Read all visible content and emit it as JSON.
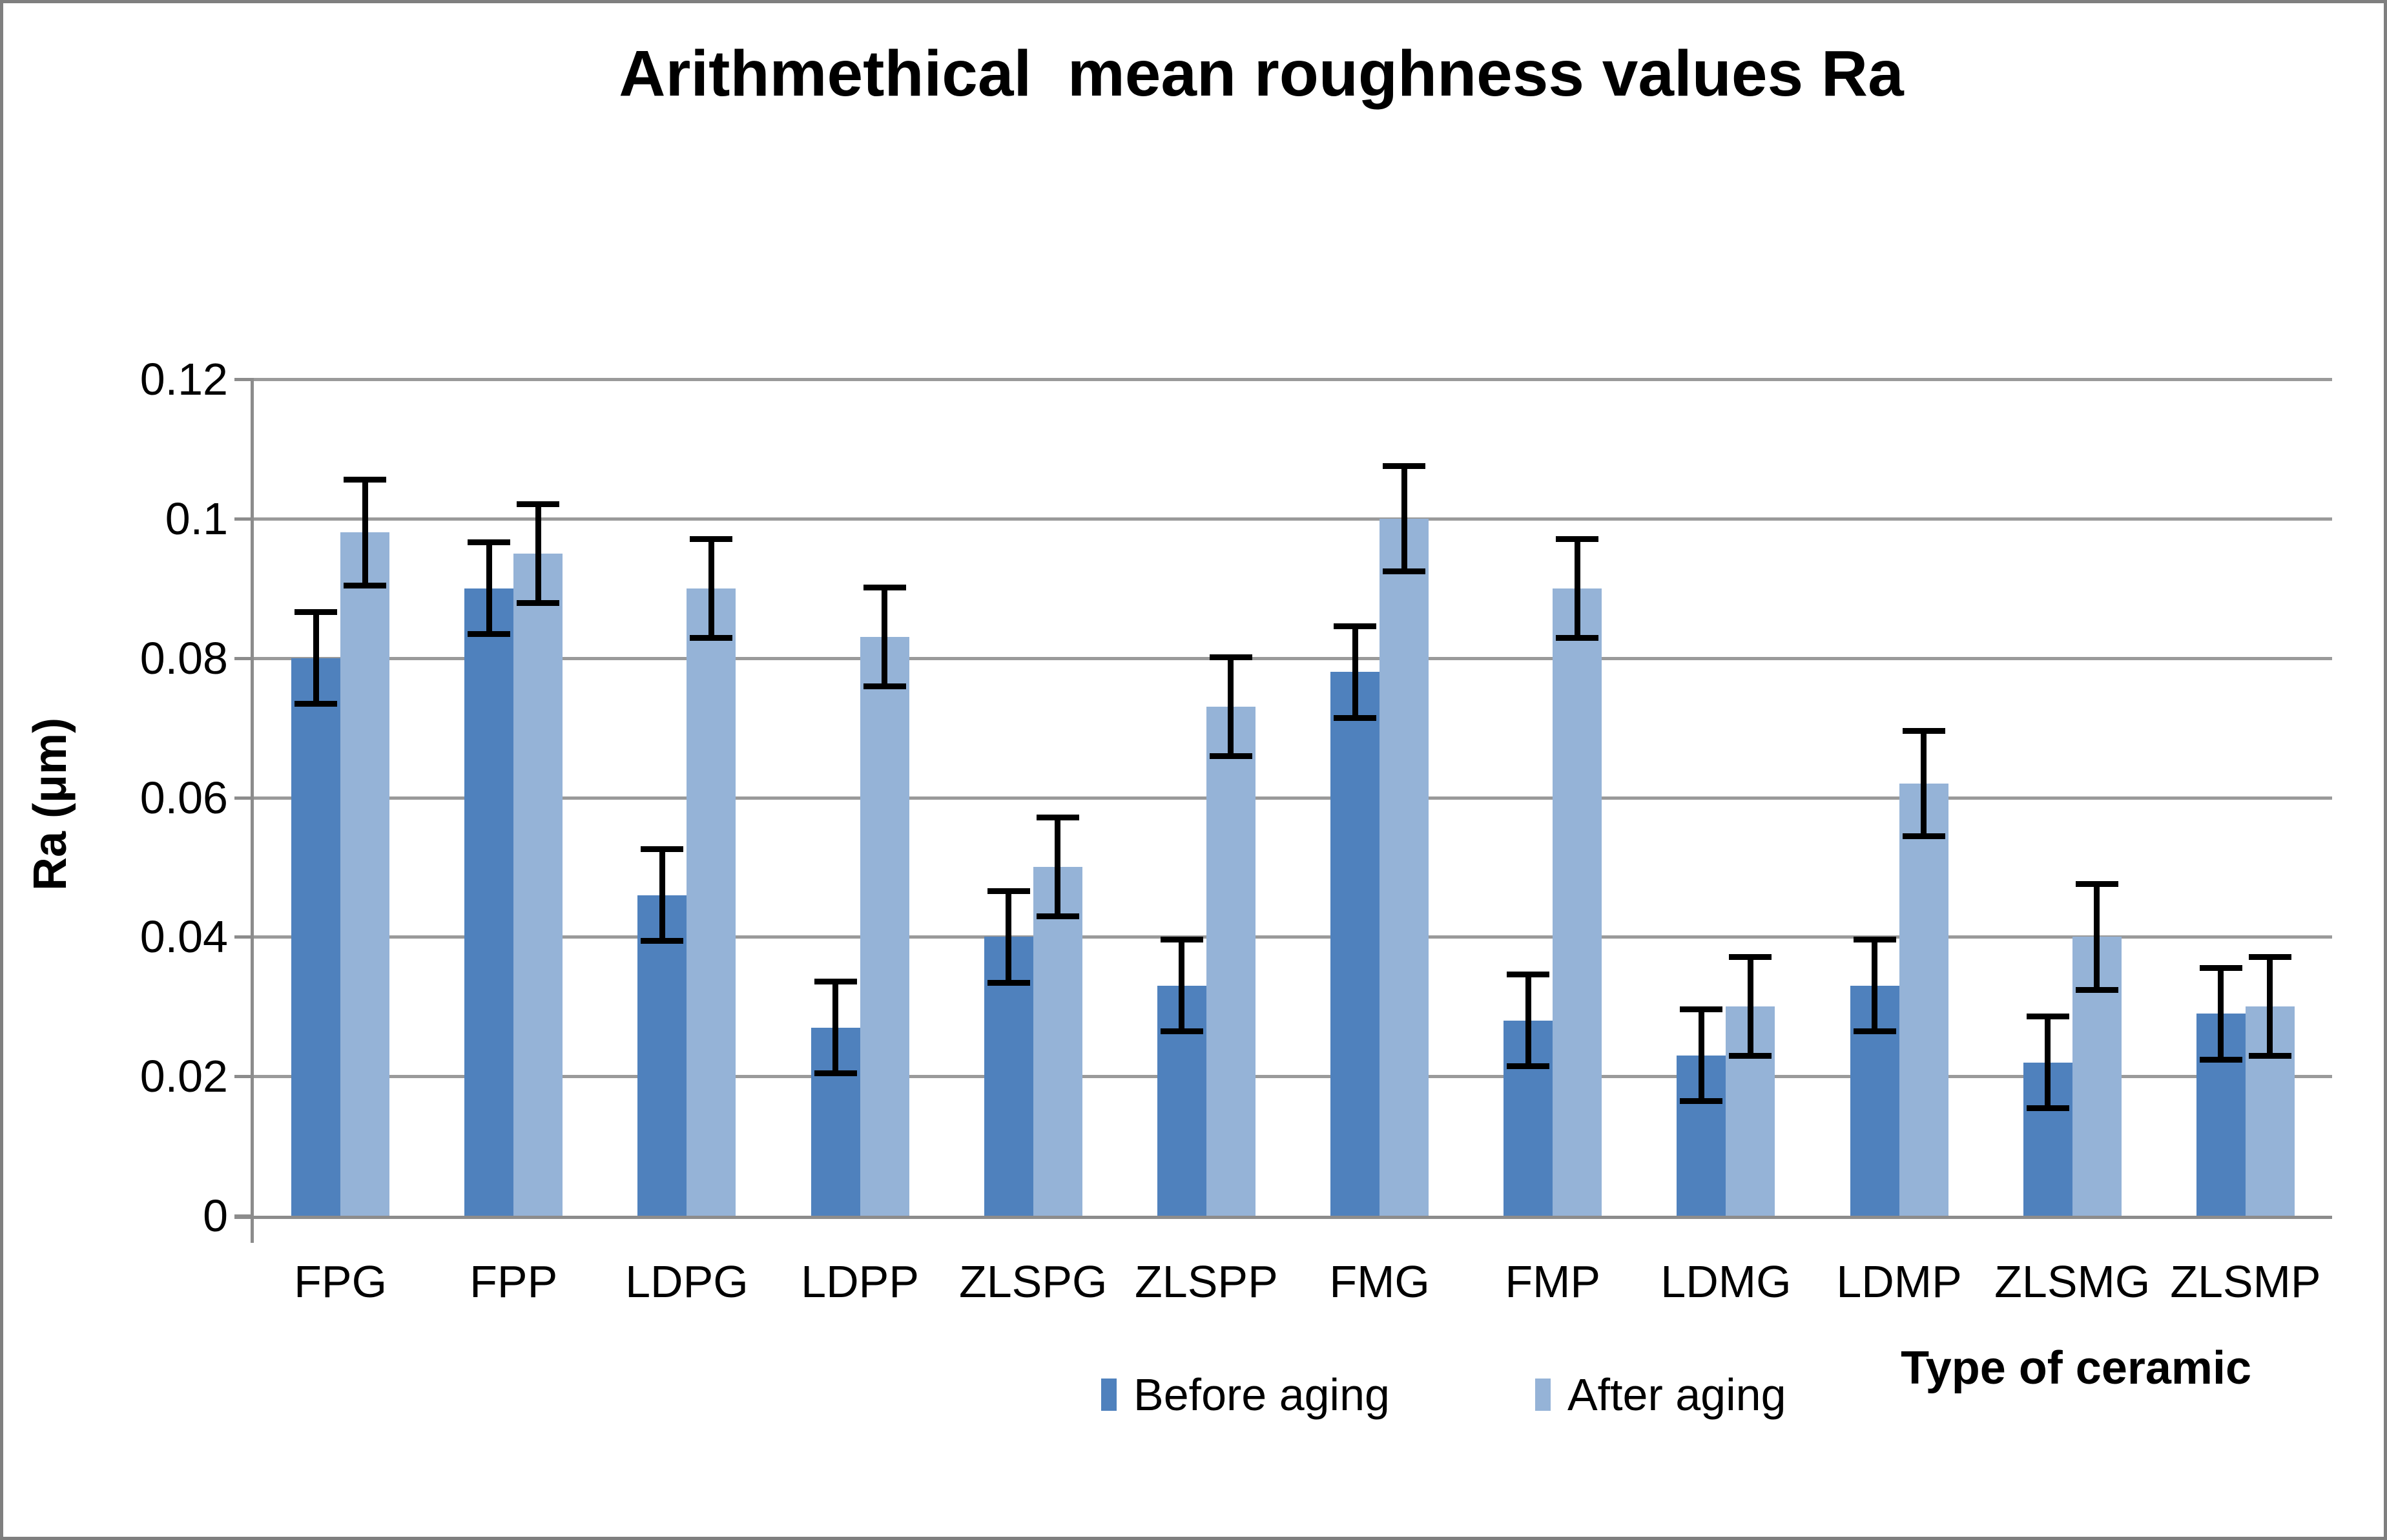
{
  "window": {
    "background": "#FFFFFF",
    "border_color": "#7F7F7F",
    "gridline_color": "#9A9A9A",
    "axis_color": "#8C8C8C",
    "error_bar_color": "#000000"
  },
  "chart": {
    "title": "Arithmethical  mean roughness values Ra",
    "y_axis_title": "Ra (μm)",
    "x_axis_title": "Type of ceramic"
  },
  "chart_data": {
    "type": "bar",
    "title": "Arithmethical  mean roughness values Ra",
    "xlabel": "Type of ceramic",
    "ylabel": "Ra (μm)",
    "ylim": [
      0,
      0.12
    ],
    "grid": true,
    "legend_position": "bottom",
    "y_ticks": [
      {
        "value": 0,
        "label": "0"
      },
      {
        "value": 0.02,
        "label": "0.02"
      },
      {
        "value": 0.04,
        "label": "0.04"
      },
      {
        "value": 0.06,
        "label": "0.06"
      },
      {
        "value": 0.08,
        "label": "0.08"
      },
      {
        "value": 0.1,
        "label": "0.1"
      },
      {
        "value": 0.12,
        "label": "0.12"
      }
    ],
    "categories": [
      "FPG",
      "FPP",
      "LDPG",
      "LDPP",
      "ZLSPG",
      "ZLSPP",
      "FMG",
      "FMP",
      "LDMG",
      "LDMP",
      "ZLSMG",
      "ZLSMP"
    ],
    "series": [
      {
        "name": "Before aging",
        "color": "#4F81BD",
        "values": [
          0.08,
          0.09,
          0.046,
          0.027,
          0.04,
          0.033,
          0.078,
          0.028,
          0.023,
          0.033,
          0.022,
          0.029
        ],
        "errors": [
          0.007,
          0.007,
          0.007,
          0.007,
          0.007,
          0.007,
          0.007,
          0.007,
          0.007,
          0.007,
          0.007,
          0.007
        ]
      },
      {
        "name": "After aging",
        "color": "#95B3D7",
        "values": [
          0.098,
          0.095,
          0.09,
          0.083,
          0.05,
          0.073,
          0.1,
          0.09,
          0.03,
          0.062,
          0.04,
          0.03
        ],
        "errors": [
          0.008,
          0.0075,
          0.0075,
          0.0075,
          0.0075,
          0.0075,
          0.008,
          0.0075,
          0.0075,
          0.008,
          0.008,
          0.0075
        ]
      }
    ]
  }
}
